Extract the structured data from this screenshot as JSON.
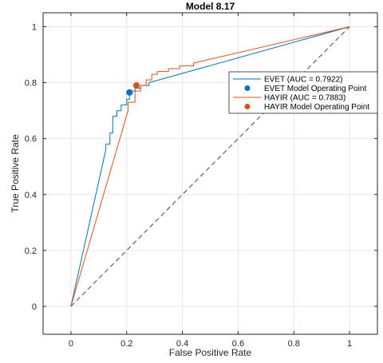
{
  "chart_data": {
    "type": "line",
    "title": "Model 8.17",
    "xlabel": "False Positive Rate",
    "ylabel": "True Positive Rate",
    "xlim": [
      -0.1,
      1.1
    ],
    "ylim": [
      -0.1,
      1.05
    ],
    "xticks": [
      0,
      0.2,
      0.4,
      0.6,
      0.8,
      1
    ],
    "yticks": [
      0,
      0.2,
      0.4,
      0.6,
      0.8,
      1
    ],
    "xtick_labels": [
      "0",
      "0.2",
      "0.4",
      "0.6",
      "0.8",
      "1"
    ],
    "ytick_labels": [
      "0",
      "0.2",
      "0.4",
      "0.6",
      "0.8",
      "1"
    ],
    "grid": true,
    "legend_position": "top-right",
    "series": [
      {
        "name": "EVET (AUC = 0.7922)",
        "kind": "line",
        "color": "#0072BD",
        "x": [
          0,
          0.125,
          0.125,
          0.14,
          0.14,
          0.15,
          0.15,
          0.165,
          0.165,
          0.18,
          0.18,
          0.2,
          0.2,
          0.21,
          0.21,
          0.22,
          0.22,
          0.23,
          0.23,
          0.25,
          0.25,
          0.28,
          0.28,
          1
        ],
        "y": [
          0,
          0.56,
          0.58,
          0.58,
          0.62,
          0.62,
          0.68,
          0.68,
          0.7,
          0.7,
          0.72,
          0.72,
          0.74,
          0.74,
          0.76,
          0.76,
          0.77,
          0.77,
          0.78,
          0.78,
          0.79,
          0.79,
          0.8,
          1
        ]
      },
      {
        "name": "EVET Model Operating Point",
        "kind": "point",
        "color": "#0072BD",
        "x": [
          0.21
        ],
        "y": [
          0.765
        ]
      },
      {
        "name": "HAYIR (AUC = 0.7883)",
        "kind": "line",
        "color": "#D95319",
        "x": [
          0,
          0.205,
          0.205,
          0.23,
          0.23,
          0.25,
          0.25,
          0.27,
          0.27,
          0.29,
          0.29,
          0.31,
          0.31,
          0.35,
          0.35,
          0.39,
          0.39,
          0.44,
          0.44,
          1
        ],
        "y": [
          0,
          0.7,
          0.73,
          0.73,
          0.77,
          0.77,
          0.79,
          0.79,
          0.81,
          0.81,
          0.83,
          0.83,
          0.84,
          0.84,
          0.85,
          0.85,
          0.86,
          0.86,
          0.87,
          1
        ]
      },
      {
        "name": "HAYIR Model Operating Point",
        "kind": "point",
        "color": "#D95319",
        "x": [
          0.235
        ],
        "y": [
          0.79
        ]
      },
      {
        "name": "",
        "kind": "reference",
        "color": "#555555",
        "x": [
          0,
          1
        ],
        "y": [
          0,
          1
        ]
      }
    ]
  }
}
